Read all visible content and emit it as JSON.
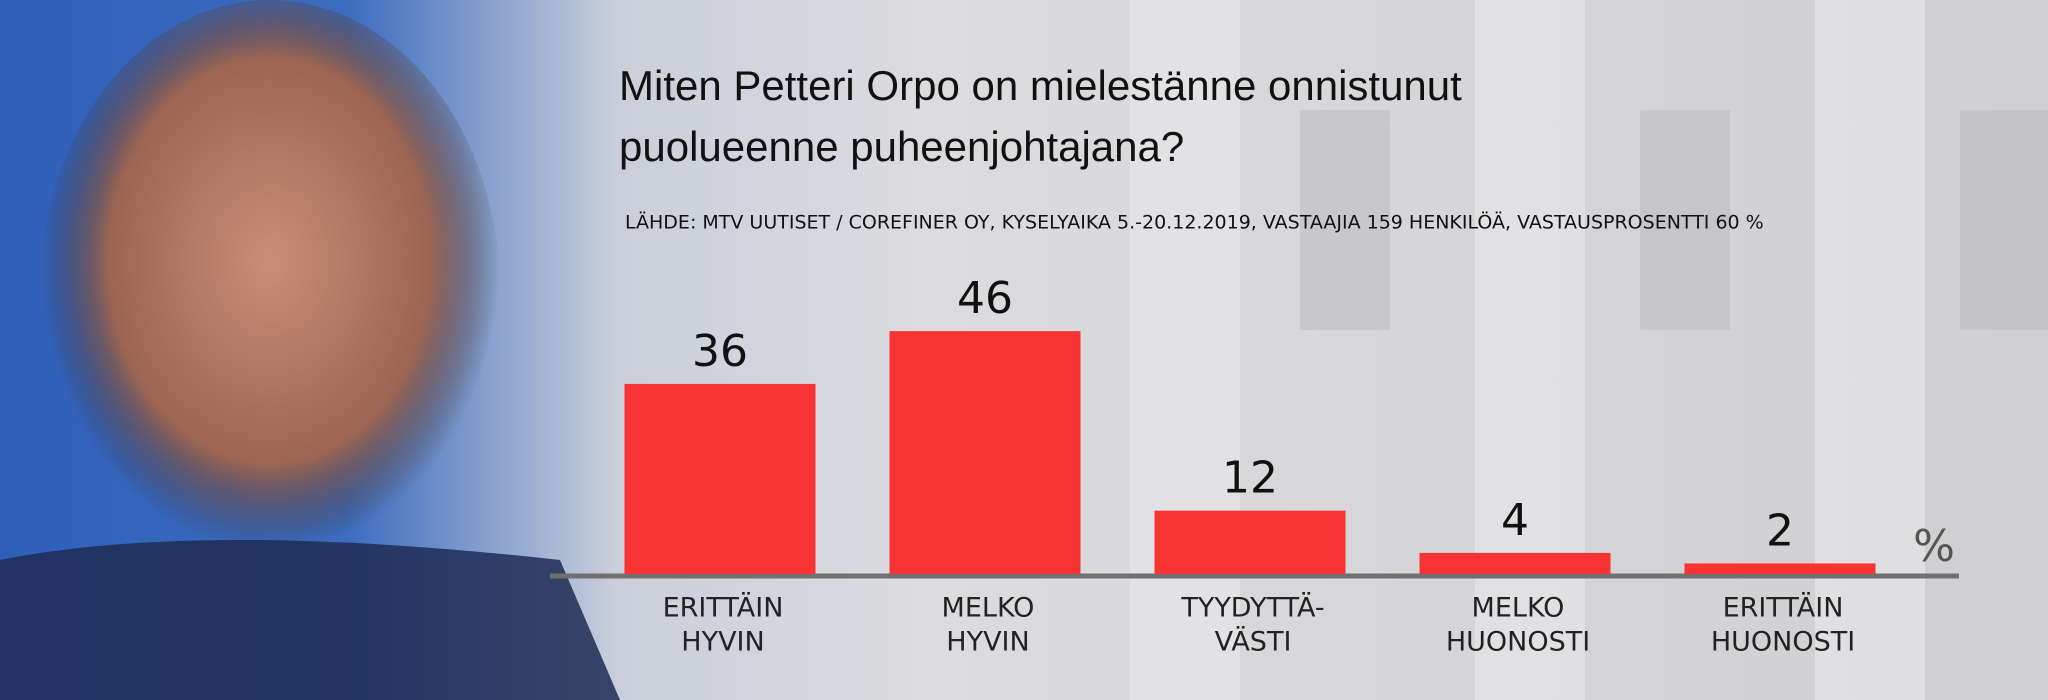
{
  "chart_data": {
    "type": "bar",
    "title": [
      "Miten Petteri Orpo on mielestänne onnistunut",
      "puolueenne puheenjohtajana?"
    ],
    "subtitle": "LÄHDE: MTV UUTISET / COREFINER OY, KYSELYAIKA 5.-20.12.2019, VASTAAJIA 159 HENKILÖÄ, VASTAUSPROSENTTI 60 %",
    "categories": [
      [
        "ERITTÄIN",
        "HYVIN"
      ],
      [
        "MELKO",
        "HYVIN"
      ],
      [
        "TYYDYTTÄ-",
        "VÄSTI"
      ],
      [
        "MELKO",
        "HUONOSTI"
      ],
      [
        "ERITTÄIN",
        "HUONOSTI"
      ]
    ],
    "values": [
      36,
      46,
      12,
      4,
      2
    ],
    "unit": "%",
    "color": "#f83333"
  }
}
